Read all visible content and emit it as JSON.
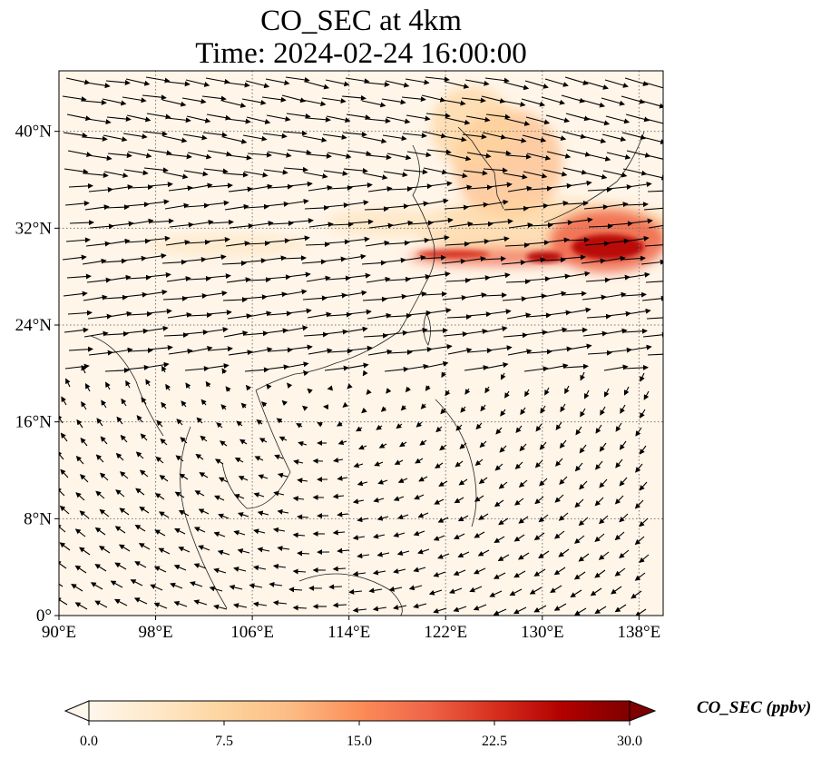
{
  "title": {
    "line1": "CO_SEC at 4km",
    "line2": "Time: 2024-02-24 16:00:00"
  },
  "map": {
    "lon_range": [
      90,
      140
    ],
    "lat_range": [
      0,
      45
    ],
    "lon_ticks": [
      "90°E",
      "98°E",
      "106°E",
      "114°E",
      "122°E",
      "130°E",
      "138°E"
    ],
    "lat_ticks": [
      "0°",
      "8°N",
      "16°N",
      "24°N",
      "32°N",
      "40°N"
    ],
    "lon_tick_values": [
      90,
      98,
      106,
      114,
      122,
      130,
      138
    ],
    "lat_tick_values": [
      0,
      8,
      16,
      24,
      32,
      40
    ],
    "gridlines": true,
    "field": "CO_SEC",
    "vectors": "wind arrows"
  },
  "colorbar": {
    "label": "CO_SEC (ppbv)",
    "ticks": [
      "0.0",
      "7.5",
      "15.0",
      "22.5",
      "30.0"
    ],
    "tick_values": [
      0,
      7.5,
      15,
      22.5,
      30
    ],
    "range": [
      0,
      30
    ],
    "colormap": "OrRd",
    "extend": "both",
    "colors": [
      "#fff7ec",
      "#fee8c8",
      "#fdd49e",
      "#fdbb84",
      "#fc8d59",
      "#ef6548",
      "#d7301f",
      "#b30000",
      "#7f0000"
    ]
  }
}
